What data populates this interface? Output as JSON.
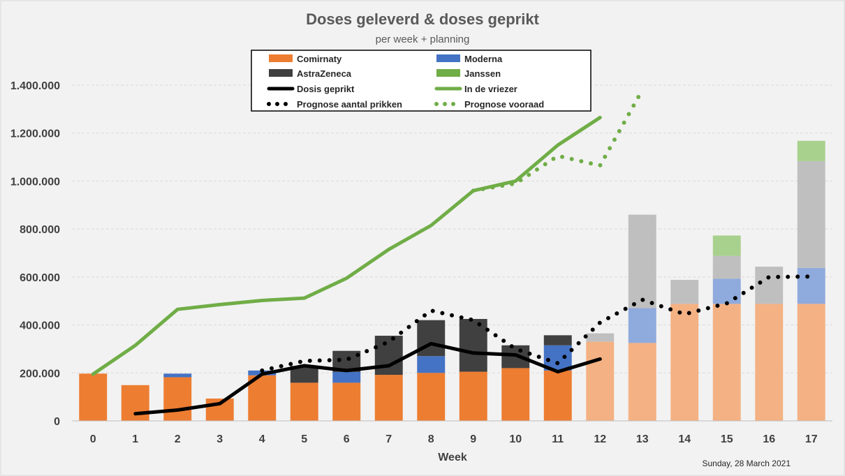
{
  "chart_data": {
    "type": "bar",
    "stacked": true,
    "title": "Doses geleverd  &  doses geprikt",
    "subtitle": "per week + planning",
    "xlabel": "Week",
    "ylabel": "",
    "ylim": [
      0,
      1400000
    ],
    "yticks": [
      0,
      200000,
      400000,
      600000,
      800000,
      1000000,
      1200000,
      1400000
    ],
    "ytick_labels": [
      "0",
      "200.000",
      "400.000",
      "600.000",
      "800.000",
      "1.000.000",
      "1.200.000",
      "1.400.000"
    ],
    "categories": [
      "0",
      "1",
      "2",
      "3",
      "4",
      "5",
      "6",
      "7",
      "8",
      "9",
      "10",
      "11",
      "12",
      "13",
      "14",
      "15",
      "16",
      "17"
    ],
    "planning_from_index": 12,
    "grid": "horizontal",
    "legend_position": "top",
    "series": [
      {
        "name": "Comirnaty",
        "kind": "bar",
        "color": "#ed7d31",
        "planning_color": "#f4b183",
        "values": [
          197000,
          149000,
          182000,
          93000,
          190000,
          159000,
          159000,
          192000,
          200000,
          205000,
          220000,
          210000,
          330000,
          325000,
          488000,
          488000,
          488000,
          488000
        ]
      },
      {
        "name": "Moderna",
        "kind": "bar",
        "color": "#4472c4",
        "planning_color": "#8faadc",
        "values": [
          0,
          0,
          15000,
          0,
          20000,
          0,
          45000,
          0,
          70000,
          0,
          0,
          105000,
          0,
          145000,
          0,
          105000,
          0,
          150000
        ]
      },
      {
        "name": "AstraZeneca",
        "kind": "bar",
        "color": "#404040",
        "planning_color": "#bfbfbf",
        "values": [
          0,
          0,
          0,
          0,
          0,
          70000,
          88000,
          163000,
          150000,
          220000,
          95000,
          42000,
          35000,
          390000,
          100000,
          95000,
          155000,
          445000
        ]
      },
      {
        "name": "Janssen",
        "kind": "bar",
        "color": "#70ad47",
        "planning_color": "#a9d18e",
        "values": [
          0,
          0,
          0,
          0,
          0,
          0,
          0,
          0,
          0,
          0,
          0,
          0,
          0,
          0,
          0,
          85000,
          0,
          85000
        ]
      },
      {
        "name": "Dosis geprikt",
        "kind": "line",
        "color": "#000000",
        "x": [
          1,
          2,
          3,
          4,
          5,
          6,
          7,
          8,
          9,
          10,
          11,
          12
        ],
        "values": [
          30000,
          45000,
          72000,
          195000,
          230000,
          210000,
          230000,
          322000,
          283000,
          275000,
          205000,
          258000
        ]
      },
      {
        "name": "In de vriezer",
        "kind": "line",
        "color": "#70ad47",
        "x": [
          0,
          1,
          2,
          3,
          4,
          5,
          6,
          7,
          8,
          9,
          10,
          11,
          12
        ],
        "values": [
          195000,
          315000,
          465000,
          485000,
          502000,
          512000,
          595000,
          715000,
          815000,
          960000,
          1000000,
          1150000,
          1265000
        ]
      },
      {
        "name": "Prognose aantal prikken",
        "kind": "dotted-line",
        "color": "#000000",
        "x": [
          4,
          5,
          6,
          7,
          8,
          9,
          10,
          11,
          12,
          13,
          14,
          15,
          16,
          17
        ],
        "values": [
          210000,
          250000,
          255000,
          330000,
          460000,
          420000,
          300000,
          240000,
          410000,
          505000,
          445000,
          490000,
          600000,
          602000
        ]
      },
      {
        "name": "Prognose vooraad",
        "kind": "dotted-line",
        "color": "#70ad47",
        "x": [
          9,
          10,
          11,
          12,
          13
        ],
        "values": [
          960000,
          990000,
          1105000,
          1065000,
          1380000
        ]
      }
    ]
  },
  "footer": {
    "date": "Sunday, 28 March 2021"
  }
}
